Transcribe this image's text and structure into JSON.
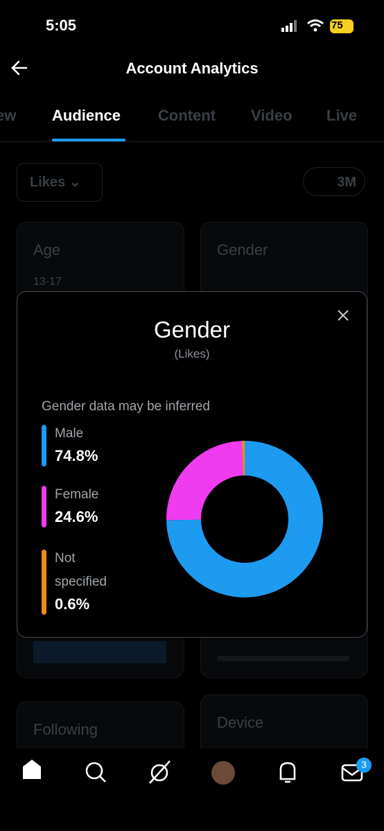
{
  "status": {
    "time": "5:05",
    "battery": "75"
  },
  "header": {
    "title": "Account Analytics"
  },
  "tabs": [
    "ew",
    "Audience",
    "Content",
    "Video",
    "Live"
  ],
  "filters": {
    "metric": "Likes",
    "range": "3M"
  },
  "cards": {
    "age": {
      "title": "Age",
      "first_row": "13-17"
    },
    "gender": "Gender",
    "following": "Following",
    "device": "Device"
  },
  "modal": {
    "title": "Gender",
    "subtitle": "(Likes)",
    "note": "Gender data may be inferred"
  },
  "chart_data": {
    "type": "pie",
    "donut": true,
    "categories": [
      "Male",
      "Female",
      "Not specified"
    ],
    "values": [
      74.8,
      24.6,
      0.6
    ],
    "value_labels": [
      "74.8%",
      "24.6%",
      "0.6%"
    ],
    "colors": [
      "#1d9bf0",
      "#f03cf0",
      "#f08c1e"
    ]
  },
  "nav": {
    "badge": "3"
  }
}
